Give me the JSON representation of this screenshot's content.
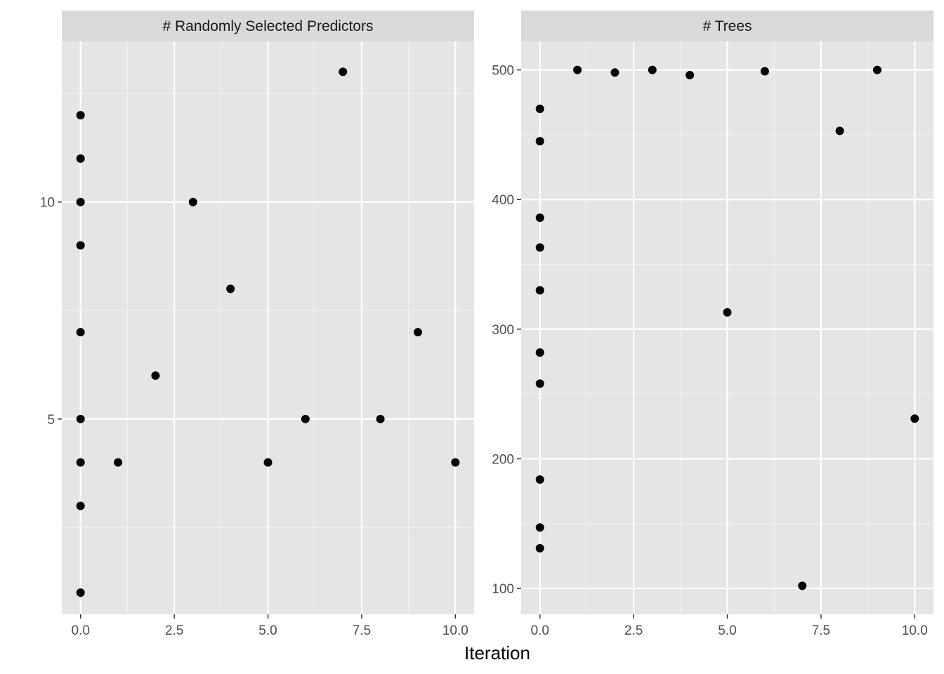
{
  "chart_data": {
    "type": "scatter",
    "xlabel": "Iteration",
    "facets": [
      {
        "title": "# Randomly Selected Predictors",
        "xlim": [
          -0.5,
          10.5
        ],
        "ylim": [
          0.5,
          13.7
        ],
        "x_ticks": [
          0.0,
          2.5,
          5.0,
          7.5,
          10.0
        ],
        "x_tick_labels": [
          "0.0",
          "2.5",
          "5.0",
          "7.5",
          "10.0"
        ],
        "y_ticks": [
          5,
          10
        ],
        "y_tick_labels": [
          "5",
          "10"
        ],
        "y_minor": [
          2.5,
          7.5,
          12.5
        ],
        "points": [
          {
            "x": 0,
            "y": 12
          },
          {
            "x": 0,
            "y": 11
          },
          {
            "x": 0,
            "y": 10
          },
          {
            "x": 0,
            "y": 9
          },
          {
            "x": 0,
            "y": 7
          },
          {
            "x": 0,
            "y": 5
          },
          {
            "x": 0,
            "y": 4
          },
          {
            "x": 0,
            "y": 3
          },
          {
            "x": 0,
            "y": 1
          },
          {
            "x": 1,
            "y": 4
          },
          {
            "x": 2,
            "y": 6
          },
          {
            "x": 3,
            "y": 10
          },
          {
            "x": 4,
            "y": 8
          },
          {
            "x": 5,
            "y": 4
          },
          {
            "x": 6,
            "y": 5
          },
          {
            "x": 7,
            "y": 13
          },
          {
            "x": 8,
            "y": 5
          },
          {
            "x": 9,
            "y": 7
          },
          {
            "x": 10,
            "y": 4
          }
        ]
      },
      {
        "title": "# Trees",
        "xlim": [
          -0.5,
          10.5
        ],
        "ylim": [
          80,
          522
        ],
        "x_ticks": [
          0.0,
          2.5,
          5.0,
          7.5,
          10.0
        ],
        "x_tick_labels": [
          "0.0",
          "2.5",
          "5.0",
          "7.5",
          "10.0"
        ],
        "y_ticks": [
          100,
          200,
          300,
          400,
          500
        ],
        "y_tick_labels": [
          "100",
          "200",
          "300",
          "400",
          "500"
        ],
        "y_minor": [
          150,
          250,
          350,
          450
        ],
        "points": [
          {
            "x": 0,
            "y": 470
          },
          {
            "x": 0,
            "y": 445
          },
          {
            "x": 0,
            "y": 386
          },
          {
            "x": 0,
            "y": 363
          },
          {
            "x": 0,
            "y": 330
          },
          {
            "x": 0,
            "y": 282
          },
          {
            "x": 0,
            "y": 258
          },
          {
            "x": 0,
            "y": 184
          },
          {
            "x": 0,
            "y": 147
          },
          {
            "x": 0,
            "y": 131
          },
          {
            "x": 1,
            "y": 500
          },
          {
            "x": 2,
            "y": 498
          },
          {
            "x": 3,
            "y": 500
          },
          {
            "x": 4,
            "y": 496
          },
          {
            "x": 5,
            "y": 313
          },
          {
            "x": 6,
            "y": 499
          },
          {
            "x": 7,
            "y": 102
          },
          {
            "x": 8,
            "y": 453
          },
          {
            "x": 9,
            "y": 500
          },
          {
            "x": 10,
            "y": 231
          }
        ]
      }
    ],
    "grid": true,
    "legend": "none",
    "colors": {
      "panel_bg": "#e5e5e5",
      "strip_bg": "#d9d9d9",
      "grid_major": "#ffffff",
      "grid_minor": "#f2f2f2",
      "point": "#000000"
    }
  }
}
